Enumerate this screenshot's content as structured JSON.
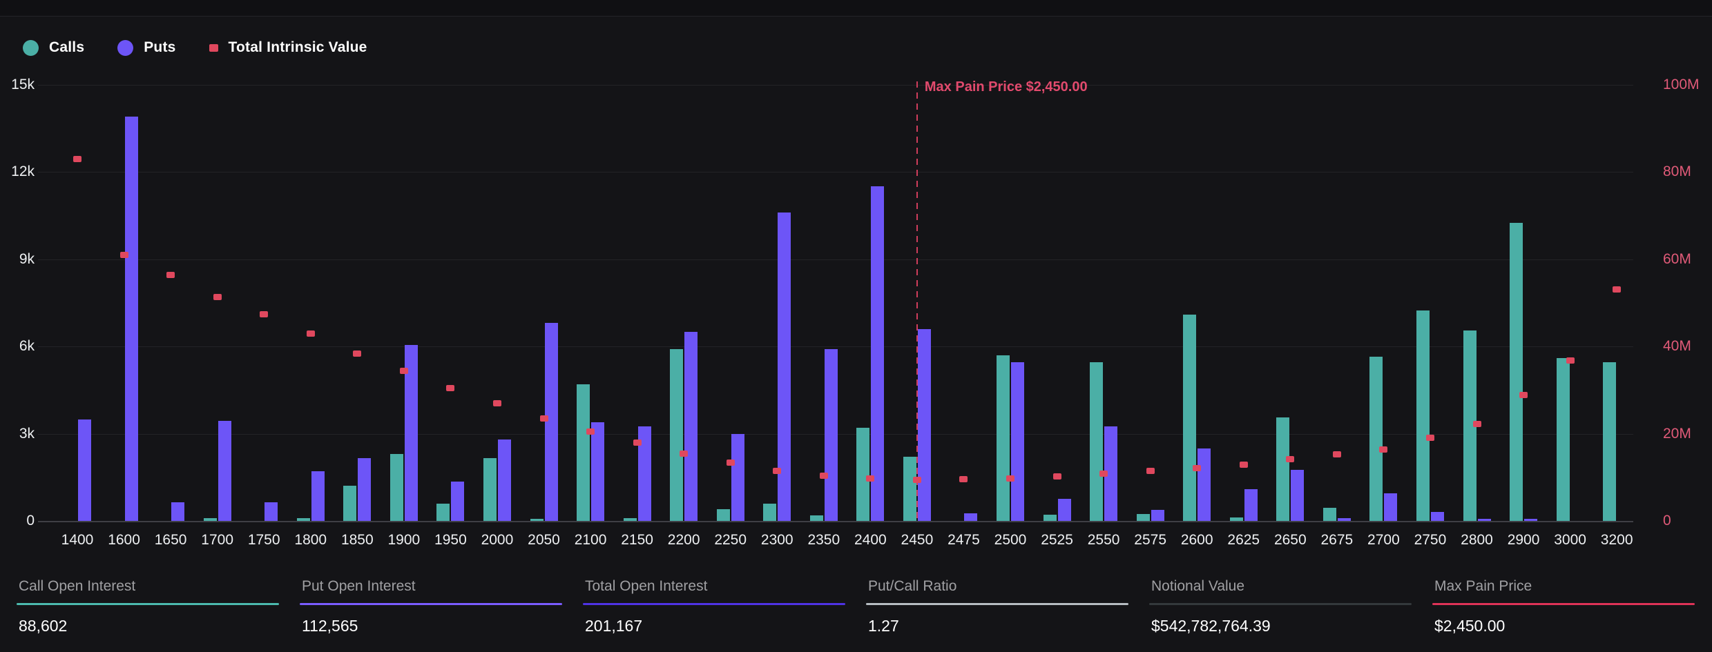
{
  "colors": {
    "background": "#141417",
    "topbar": "#101013",
    "grid": "#232327",
    "baseline": "#3f3f45",
    "calls": "#4BAFA6",
    "puts": "#6D55F7",
    "intrinsic": "#E0485E",
    "right_axis_text": "#E05A78",
    "max_pain_line": "#CF3D5C",
    "max_pain_label": "#E24A6D",
    "axis_text": "#EEF0F2"
  },
  "legend": [
    {
      "id": "calls",
      "label": "Calls",
      "shape": "circle",
      "color": "#4BAFA6"
    },
    {
      "id": "puts",
      "label": "Puts",
      "shape": "circle",
      "color": "#6D55F7"
    },
    {
      "id": "total-intrinsic-value",
      "label": "Total Intrinsic Value",
      "shape": "square",
      "color": "#E0485E"
    }
  ],
  "chart_data": {
    "type": "bar",
    "categories": [
      "1400",
      "1600",
      "1650",
      "1700",
      "1750",
      "1800",
      "1850",
      "1900",
      "1950",
      "2000",
      "2050",
      "2100",
      "2150",
      "2200",
      "2250",
      "2300",
      "2350",
      "2400",
      "2450",
      "2475",
      "2500",
      "2525",
      "2550",
      "2575",
      "2600",
      "2625",
      "2650",
      "2675",
      "2700",
      "2750",
      "2800",
      "2900",
      "3000",
      "3200"
    ],
    "series": [
      {
        "name": "Calls",
        "type": "bar",
        "axis": "left",
        "color": "#4BAFA6",
        "values": [
          0,
          0,
          0,
          100,
          0,
          100,
          1200,
          2300,
          600,
          2150,
          70,
          4700,
          100,
          5900,
          400,
          600,
          200,
          3200,
          2200,
          0,
          5700,
          220,
          5450,
          240,
          7100,
          120,
          3550,
          440,
          5650,
          7250,
          6550,
          10250,
          5600,
          5450
        ]
      },
      {
        "name": "Puts",
        "type": "bar",
        "axis": "left",
        "color": "#6D55F7",
        "values": [
          3500,
          13900,
          650,
          3450,
          650,
          1700,
          2150,
          6050,
          1350,
          2800,
          6800,
          3400,
          3250,
          6500,
          3000,
          10600,
          5900,
          11500,
          6600,
          270,
          5450,
          760,
          3250,
          380,
          2500,
          1080,
          1750,
          100,
          950,
          300,
          80,
          80,
          0,
          0
        ]
      },
      {
        "name": "Total Intrinsic Value",
        "type": "scatter",
        "axis": "right",
        "color": "#E0485E",
        "values_millions": [
          83,
          61,
          56.5,
          51.5,
          47.5,
          43,
          38.5,
          34.5,
          30.5,
          27,
          23.5,
          20.5,
          18,
          15.5,
          13.5,
          11.6,
          10.5,
          9.8,
          9.5,
          9.7,
          9.8,
          10.3,
          10.9,
          11.6,
          12.2,
          13,
          14.3,
          15.3,
          16.5,
          19.1,
          22.3,
          28.9,
          36.8,
          53.2
        ]
      }
    ],
    "left_axis": {
      "ticks": [
        "0",
        "3k",
        "6k",
        "9k",
        "12k",
        "15k"
      ],
      "min": 0,
      "max": 15000,
      "grid": true
    },
    "right_axis": {
      "ticks": [
        "0",
        "20M",
        "40M",
        "60M",
        "80M",
        "100M"
      ],
      "min": 0,
      "max": 100000000,
      "color": "#E05A78"
    },
    "annotation": {
      "label": "Max Pain Price $2,450.00",
      "strike": "2450",
      "line_color": "#CF3D5C",
      "text_color": "#E24A6D"
    },
    "legend_position": "top-left"
  },
  "stats": [
    {
      "label": "Call Open Interest",
      "value": "88,602",
      "accent": "#4CBAAE"
    },
    {
      "label": "Put Open Interest",
      "value": "112,565",
      "accent": "#7A5CFF"
    },
    {
      "label": "Total Open Interest",
      "value": "201,167",
      "accent": "#4F33E4"
    },
    {
      "label": "Put/Call Ratio",
      "value": "1.27",
      "accent": "#B7BDC2"
    },
    {
      "label": "Notional Value",
      "value": "$542,782,764.39",
      "accent": "#34393C"
    },
    {
      "label": "Max Pain Price",
      "value": "$2,450.00",
      "accent": "#DE3357"
    }
  ]
}
